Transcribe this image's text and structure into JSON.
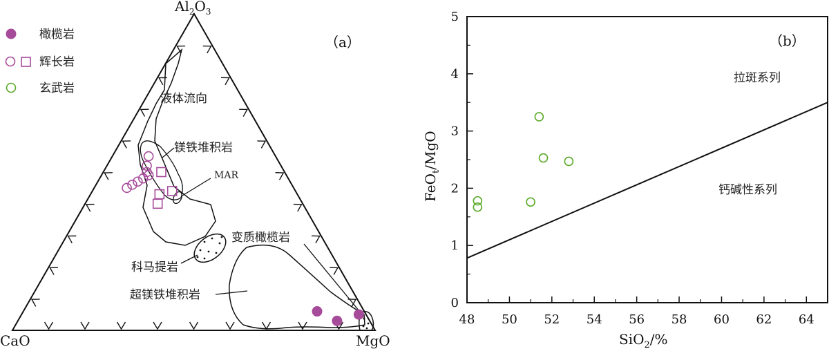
{
  "chart_data": [
    {
      "panel_label": "（a）",
      "type": "scatter",
      "subtype": "ternary",
      "vertices": {
        "top": "Al2O3",
        "left": "CaO",
        "right": "MgO"
      },
      "legend": [
        {
          "label": "橄榄岩",
          "marker": "filled-circle",
          "color": "#a64a9a"
        },
        {
          "label": "辉长岩",
          "marker": "open-circle-and-square",
          "color": "#a64a9a"
        },
        {
          "label": "玄武岩",
          "marker": "open-circle",
          "color": "#5aaa2a"
        }
      ],
      "annotations": [
        "液体流向",
        "镁铁堆积岩",
        "MAR",
        "变质橄榄岩",
        "科马提岩",
        "超镁铁堆积岩"
      ],
      "series": [
        {
          "name": "橄榄岩",
          "points": [
            {
              "Al2O3": 6,
              "CaO": 13,
              "MgO": 81
            },
            {
              "Al2O3": 3,
              "CaO": 9,
              "MgO": 88
            },
            {
              "Al2O3": 5,
              "CaO": 2,
              "MgO": 93
            }
          ]
        },
        {
          "name": "辉长岩 (circle)",
          "points": [
            {
              "Al2O3": 55,
              "CaO": 35,
              "MgO": 10
            },
            {
              "Al2O3": 52,
              "CaO": 37,
              "MgO": 11
            },
            {
              "Al2O3": 50,
              "CaO": 38,
              "MgO": 12
            },
            {
              "Al2O3": 49,
              "CaO": 38,
              "MgO": 13
            },
            {
              "Al2O3": 48,
              "CaO": 40,
              "MgO": 12
            },
            {
              "Al2O3": 46,
              "CaO": 44,
              "MgO": 10
            },
            {
              "Al2O3": 45,
              "CaO": 46,
              "MgO": 9
            },
            {
              "Al2O3": 47,
              "CaO": 42,
              "MgO": 11
            }
          ]
        },
        {
          "name": "辉长岩 (square)",
          "points": [
            {
              "Al2O3": 50,
              "CaO": 34,
              "MgO": 16
            },
            {
              "Al2O3": 44,
              "CaO": 34,
              "MgO": 22
            },
            {
              "Al2O3": 43,
              "CaO": 38,
              "MgO": 19
            },
            {
              "Al2O3": 40,
              "CaO": 40,
              "MgO": 20
            }
          ]
        }
      ]
    },
    {
      "panel_label": "（b）",
      "type": "scatter",
      "xlabel": "SiO2/%",
      "ylabel": "FeOt/MgO",
      "xlim": [
        48,
        65
      ],
      "ylim": [
        0,
        5
      ],
      "xticks": [
        48,
        50,
        52,
        54,
        56,
        58,
        60,
        62,
        64
      ],
      "yticks": [
        0,
        1,
        2,
        3,
        4,
        5
      ],
      "region_labels": [
        "拉斑系列",
        "钙碱性系列"
      ],
      "boundary_line": {
        "x": [
          48,
          65
        ],
        "y": [
          0.78,
          3.5
        ]
      },
      "series": [
        {
          "name": "玄武岩",
          "x": [
            48.5,
            48.5,
            51.0,
            51.4,
            51.6,
            52.8
          ],
          "y": [
            1.78,
            1.67,
            1.76,
            3.25,
            2.53,
            2.47
          ]
        }
      ]
    }
  ]
}
